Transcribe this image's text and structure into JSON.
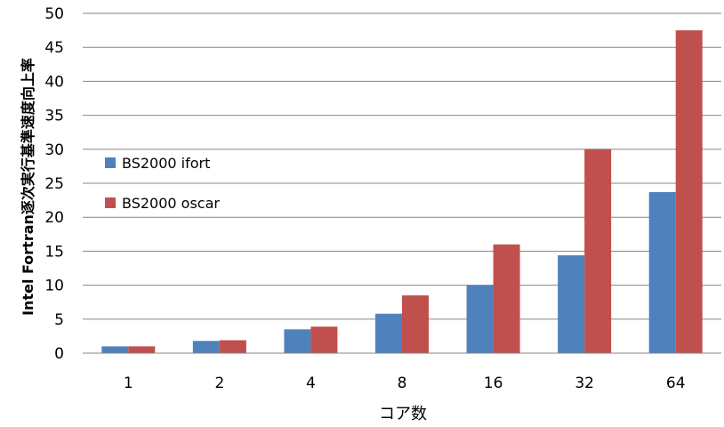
{
  "chart_data": {
    "type": "bar",
    "title": "",
    "xlabel": "コア数",
    "ylabel": "Intel Fortran逐次実行基準速度向上率",
    "categories": [
      "1",
      "2",
      "4",
      "8",
      "16",
      "32",
      "64"
    ],
    "ylim": [
      0,
      50
    ],
    "yticks": [
      "0",
      "5",
      "10",
      "15",
      "20",
      "25",
      "30",
      "35",
      "40",
      "45",
      "50"
    ],
    "grid": true,
    "legend_position": "left",
    "series": [
      {
        "name": "BS2000 ifort",
        "color": "#4f81bd",
        "values": [
          1.0,
          1.8,
          3.5,
          5.8,
          10.0,
          14.4,
          23.7
        ]
      },
      {
        "name": "BS2000 oscar",
        "color": "#c0504d",
        "values": [
          1.0,
          1.9,
          3.9,
          8.5,
          16.0,
          30.0,
          47.5
        ]
      }
    ]
  }
}
